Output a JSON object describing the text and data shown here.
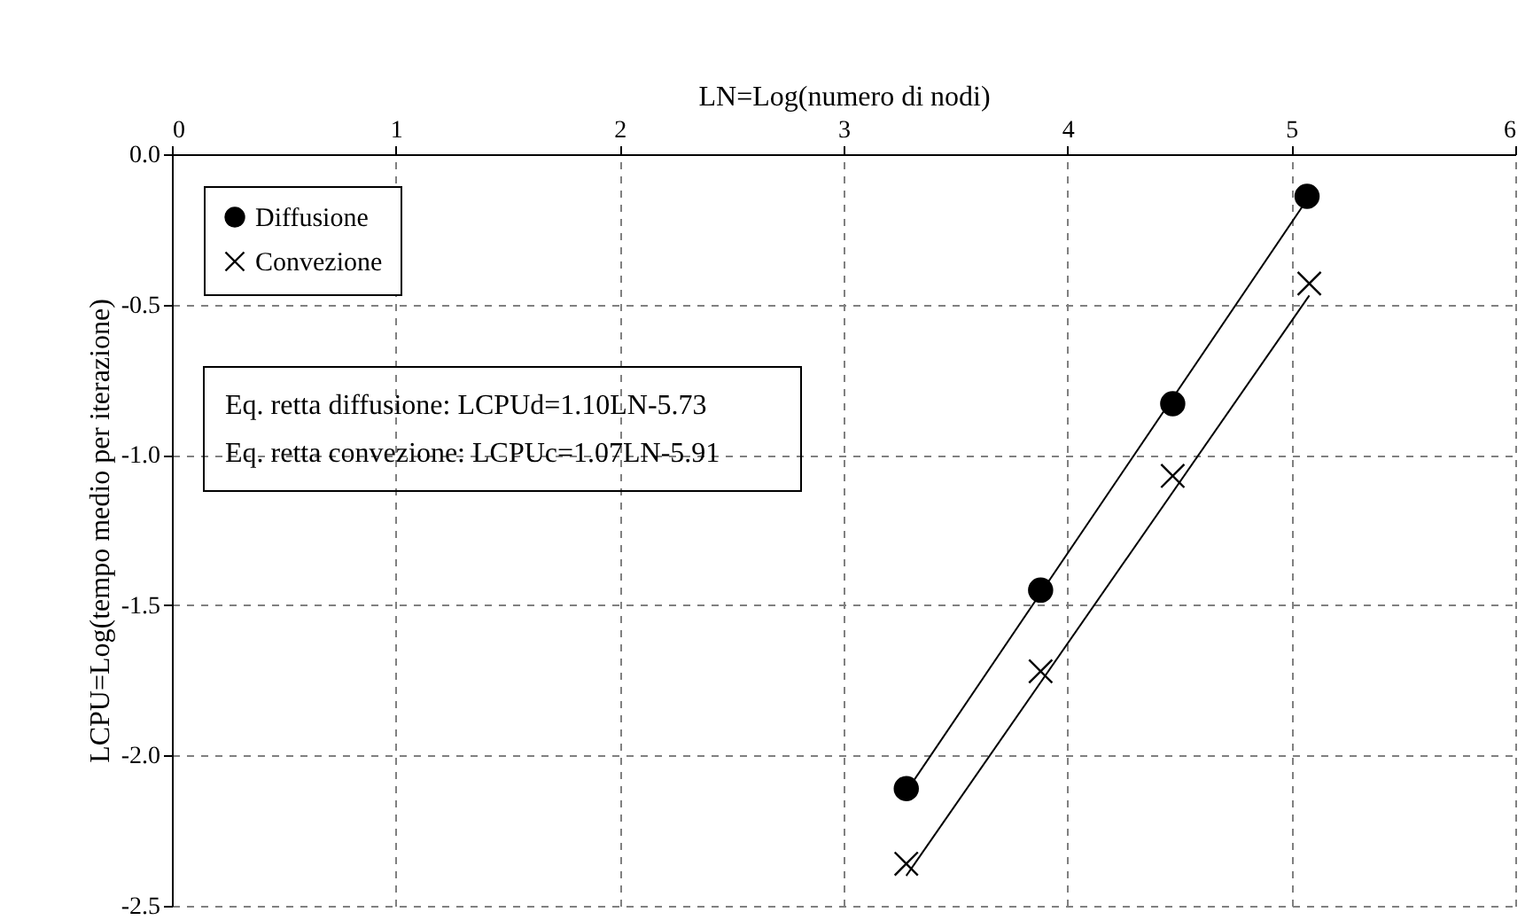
{
  "chart_data": {
    "type": "scatter",
    "xlabel": "LN=Log(numero di nodi)",
    "ylabel": "LCPU=Log(tempo medio per iterazione)",
    "xlim": [
      0,
      6
    ],
    "xticks": [
      0,
      1,
      2,
      3,
      4,
      5,
      6
    ],
    "ylim": [
      -2.5,
      0
    ],
    "yticks": [
      {
        "value": 0,
        "label": "0.0"
      },
      -0.5,
      {
        "value": -1,
        "label": "-1.0"
      },
      -1.5,
      {
        "value": -2,
        "label": "-2.0"
      },
      -2.5
    ],
    "grid": true,
    "legend": "top left",
    "series": [
      {
        "name": "Diffusione",
        "color": "#000000",
        "marker": "circle",
        "x": [
          3.28,
          3.88,
          4.47,
          5.07
        ],
        "values": [
          -2.11,
          -1.45,
          -0.83,
          -0.14
        ]
      },
      {
        "name": "Convezione",
        "color": "#000000",
        "marker": "cross",
        "x": [
          3.28,
          3.88,
          4.47,
          5.08
        ],
        "values": [
          -2.36,
          -1.72,
          -1.07,
          -0.43
        ]
      },
      {
        "type": "line",
        "color": "#000000",
        "x": [
          3.28,
          5.08
        ],
        "values": [
          -2.12,
          -0.14
        ]
      },
      {
        "type": "line",
        "color": "#000000",
        "x": [
          3.28,
          5.08
        ],
        "values": [
          -2.4,
          -0.47
        ]
      }
    ],
    "annotations": [
      "Eq. retta diffusione: LCPUd=1.10LN-5.73",
      "Eq. retta convezione: LCPUc=1.07LN-5.91"
    ]
  }
}
